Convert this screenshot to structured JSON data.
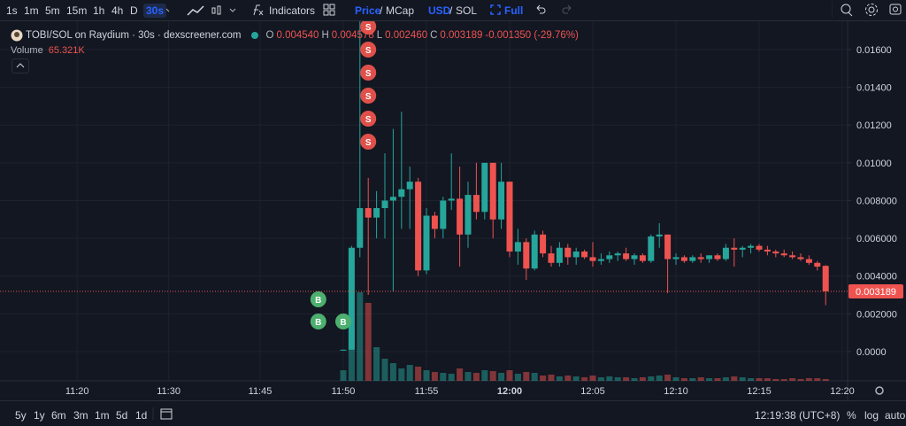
{
  "toolbar": {
    "intervals": [
      "1s",
      "1m",
      "5m",
      "15m",
      "1h",
      "4h",
      "D",
      "30s"
    ],
    "indicators": "Indicators",
    "price_toggle": [
      "Price",
      "/",
      "MCap"
    ],
    "currency_toggle": [
      "USD",
      "/",
      "SOL"
    ],
    "full": "Full"
  },
  "legend": {
    "symbol": "TOBI/SOL on Raydium · 30s · dexscreener.com",
    "o_label": "O",
    "o": "0.004540",
    "h_label": "H",
    "h": "0.004578",
    "l_label": "L",
    "l": "0.002460",
    "c_label": "C",
    "c": "0.003189",
    "change": "-0.001350 (-29.76%)",
    "volume_label": "Volume",
    "volume": "65.321K"
  },
  "chart_data": {
    "type": "candlestick",
    "up_color": "#26a69a",
    "down_color": "#ef5350",
    "categories": [
      null,
      null,
      null,
      null,
      null,
      null,
      null,
      null,
      "11:20",
      null,
      null,
      null,
      null,
      null,
      null,
      null,
      null,
      null,
      null,
      "11:30",
      null,
      null,
      null,
      null,
      null,
      null,
      null,
      null,
      null,
      null,
      "11:45",
      null,
      null,
      null,
      null,
      null,
      null,
      null,
      null,
      null,
      "11:50",
      null,
      null,
      null,
      null,
      null,
      null,
      null,
      null,
      null,
      "11:55",
      null,
      null,
      null,
      null,
      null,
      null,
      null,
      null,
      null,
      "12:00",
      null,
      null,
      null,
      null,
      null,
      null,
      null,
      null,
      null,
      "12:05",
      null,
      null,
      null,
      null,
      null,
      null,
      null,
      null,
      null,
      "12:10",
      null,
      null,
      null,
      null,
      null,
      null,
      null,
      null,
      null,
      "12:15",
      null,
      null,
      null,
      null,
      null,
      null,
      null,
      null,
      null,
      "12:20"
    ],
    "open": [
      null,
      null,
      null,
      null,
      null,
      null,
      null,
      null,
      null,
      null,
      null,
      null,
      null,
      null,
      null,
      null,
      null,
      null,
      null,
      null,
      null,
      null,
      null,
      null,
      null,
      null,
      null,
      null,
      null,
      null,
      null,
      null,
      null,
      null,
      null,
      null,
      null,
      null,
      null,
      null,
      5e-05,
      0.0001,
      0.0055,
      0.0076,
      0.0071,
      0.0076,
      0.008,
      0.0082,
      0.0086,
      0.009,
      0.0043,
      0.0072,
      0.0065,
      0.008,
      0.0081,
      0.0062,
      0.0083,
      0.0074,
      0.01,
      0.007,
      0.009,
      0.0053,
      0.0058,
      0.0044,
      0.0062,
      0.0052,
      0.0047,
      0.0055,
      0.005,
      0.0053,
      0.005,
      0.0048,
      0.0049,
      0.0051,
      0.0052,
      0.0049,
      0.0051,
      0.0048,
      0.0061,
      0.0062,
      0.0049,
      0.005,
      0.0048,
      0.005,
      0.0049,
      0.0051,
      0.0049,
      0.0055,
      0.0054,
      0.0055,
      0.0056,
      0.0054,
      0.0053,
      0.0052,
      0.0051,
      0.005,
      0.0049,
      0.0047,
      0.00454,
      null,
      null
    ],
    "high": [
      null,
      null,
      null,
      null,
      null,
      null,
      null,
      null,
      null,
      null,
      null,
      null,
      null,
      null,
      null,
      null,
      null,
      null,
      null,
      null,
      null,
      null,
      null,
      null,
      null,
      null,
      null,
      null,
      null,
      null,
      null,
      null,
      null,
      null,
      null,
      null,
      null,
      null,
      null,
      null,
      0.0001,
      0.0056,
      0.0178,
      0.0092,
      0.0085,
      0.0105,
      0.0118,
      0.0127,
      0.0098,
      0.0092,
      0.0076,
      0.0074,
      0.0082,
      0.0105,
      0.0098,
      0.009,
      0.01,
      0.01,
      0.01,
      0.01,
      0.009,
      0.0065,
      0.006,
      0.0064,
      0.0064,
      0.0056,
      0.0058,
      0.0057,
      0.0055,
      0.0054,
      0.0058,
      0.0052,
      0.0053,
      0.0053,
      0.0055,
      0.0052,
      0.0052,
      0.0062,
      0.0068,
      0.0062,
      0.0052,
      0.0051,
      0.0051,
      0.0052,
      0.0051,
      0.0052,
      0.0057,
      0.006,
      0.0056,
      0.0057,
      0.0057,
      0.0056,
      0.0054,
      0.0054,
      0.0053,
      0.0052,
      0.0051,
      0.0048,
      0.004578,
      null,
      null
    ],
    "low": [
      null,
      null,
      null,
      null,
      null,
      null,
      null,
      null,
      null,
      null,
      null,
      null,
      null,
      null,
      null,
      null,
      null,
      null,
      null,
      null,
      null,
      null,
      null,
      null,
      null,
      null,
      null,
      null,
      null,
      null,
      null,
      null,
      null,
      null,
      null,
      null,
      null,
      null,
      null,
      null,
      5e-05,
      0.0001,
      0.005,
      0.003,
      0.006,
      0.006,
      0.0032,
      0.0065,
      0.0065,
      0.004,
      0.0041,
      0.006,
      0.006,
      0.0075,
      0.0045,
      0.0055,
      0.007,
      0.007,
      0.006,
      0.0065,
      0.005,
      0.0046,
      0.0038,
      0.0043,
      0.005,
      0.0045,
      0.0045,
      0.0046,
      0.0046,
      0.0049,
      0.0045,
      0.0046,
      0.0047,
      0.0048,
      0.0048,
      0.0046,
      0.0047,
      0.0047,
      0.0055,
      0.0031,
      0.0046,
      0.0047,
      0.0047,
      0.0047,
      0.0047,
      0.0048,
      0.0048,
      0.0045,
      0.005,
      0.0052,
      0.0053,
      0.0051,
      0.005,
      0.005,
      0.0049,
      0.0048,
      0.0046,
      0.0043,
      0.00246,
      null,
      null
    ],
    "close": [
      null,
      null,
      null,
      null,
      null,
      null,
      null,
      null,
      null,
      null,
      null,
      null,
      null,
      null,
      null,
      null,
      null,
      null,
      null,
      null,
      null,
      null,
      null,
      null,
      null,
      null,
      null,
      null,
      null,
      null,
      null,
      null,
      null,
      null,
      null,
      null,
      null,
      null,
      null,
      null,
      0.0001,
      0.0055,
      0.0076,
      0.0071,
      0.0076,
      0.008,
      0.0082,
      0.0086,
      0.009,
      0.0043,
      0.0072,
      0.0065,
      0.008,
      0.0081,
      0.0062,
      0.0083,
      0.0074,
      0.01,
      0.007,
      0.009,
      0.0053,
      0.0058,
      0.0044,
      0.0062,
      0.0052,
      0.0047,
      0.0055,
      0.005,
      0.0053,
      0.005,
      0.0048,
      0.0049,
      0.0051,
      0.0052,
      0.0049,
      0.0051,
      0.0048,
      0.0061,
      0.0062,
      0.0049,
      0.005,
      0.0048,
      0.005,
      0.0049,
      0.0051,
      0.0049,
      0.0055,
      0.0054,
      0.0055,
      0.0056,
      0.0054,
      0.0053,
      0.0052,
      0.0051,
      0.005,
      0.0049,
      0.0047,
      0.0045,
      0.003189,
      null,
      null
    ],
    "volume": [
      null,
      null,
      null,
      null,
      null,
      null,
      null,
      null,
      null,
      null,
      null,
      null,
      null,
      null,
      null,
      null,
      null,
      null,
      null,
      null,
      null,
      null,
      null,
      null,
      null,
      null,
      null,
      null,
      null,
      null,
      null,
      null,
      null,
      null,
      null,
      null,
      null,
      null,
      null,
      null,
      392000,
      1960000,
      3266000,
      2874000,
      1241000,
      816000,
      653000,
      457000,
      588000,
      523000,
      392000,
      327000,
      294000,
      261000,
      457000,
      327000,
      294000,
      392000,
      359000,
      294000,
      392000,
      261000,
      327000,
      294000,
      196000,
      229000,
      163000,
      196000,
      163000,
      131000,
      196000,
      131000,
      163000,
      131000,
      131000,
      98000,
      131000,
      163000,
      196000,
      229000,
      131000,
      98000,
      98000,
      131000,
      98000,
      98000,
      131000,
      163000,
      131000,
      98000,
      98000,
      98000,
      65000,
      65000,
      98000,
      65000,
      98000,
      98000,
      65321,
      null,
      null
    ],
    "ylim": [
      -0.00155,
      0.0175
    ],
    "yticks": [
      {
        "value": 0,
        "label": "0.0000"
      },
      {
        "value": 0.002,
        "label": "0.002000"
      },
      {
        "value": 0.004,
        "label": "0.004000"
      },
      {
        "value": 0.006,
        "label": "0.006000"
      },
      {
        "value": 0.008,
        "label": "0.008000"
      },
      {
        "value": 0.01,
        "label": "0.01000"
      },
      {
        "value": 0.012,
        "label": "0.01200"
      },
      {
        "value": 0.014,
        "label": "0.01400"
      },
      {
        "value": 0.016,
        "label": "0.01600"
      }
    ],
    "last_price_label": "0.003189",
    "buy_markers": [
      "B",
      "B",
      "B"
    ],
    "sell_markers": [
      "S",
      "S",
      "S",
      "S",
      "S",
      "S"
    ]
  },
  "bottom_bar": {
    "ranges": [
      "5y",
      "1y",
      "6m",
      "3m",
      "1m",
      "5d",
      "1d"
    ],
    "clock": "12:19:38 (UTC+8)",
    "percent": "%",
    "log": "log",
    "auto": "auto"
  }
}
